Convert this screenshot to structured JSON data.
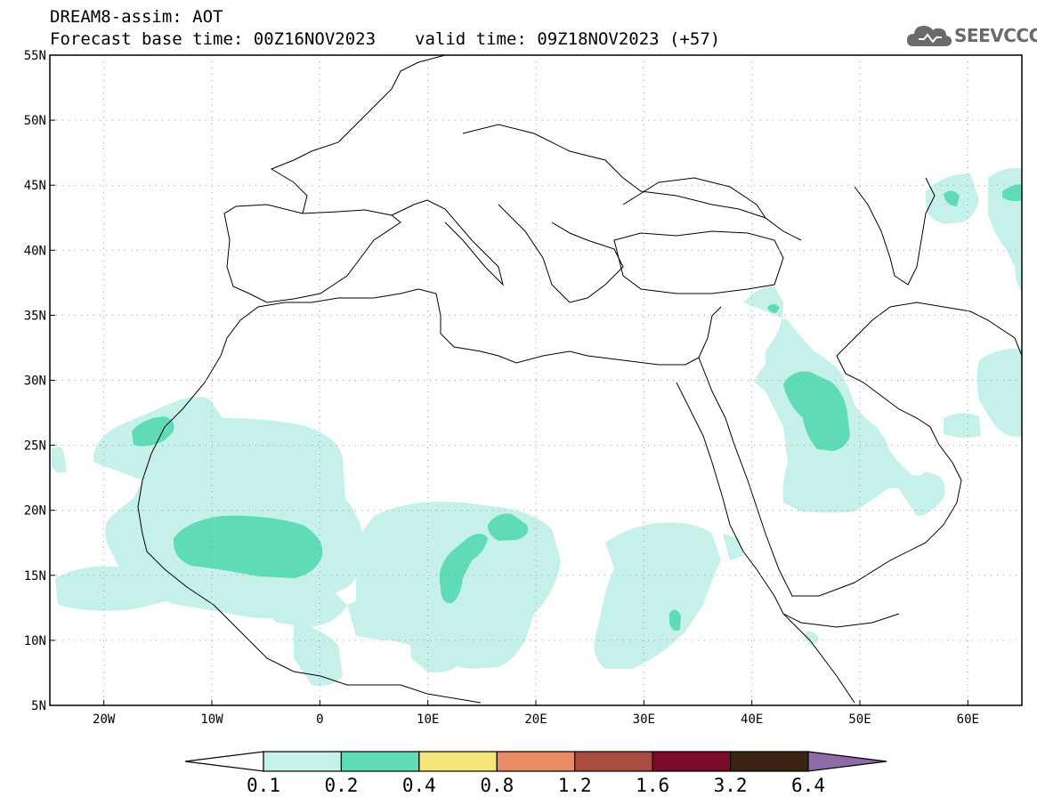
{
  "header": {
    "title": "DREAM8-assim: AOT",
    "base_time": "Forecast base time: 00Z16NOV2023",
    "valid_time": "valid time: 09Z18NOV2023 (+57)"
  },
  "logo": {
    "text": "SEEVCCC",
    "icon": "cloud-icon"
  },
  "map": {
    "lon_range": [
      -25,
      65
    ],
    "lat_range": [
      5,
      55
    ],
    "lon_ticks": [
      {
        "v": -20,
        "label": "20W"
      },
      {
        "v": -10,
        "label": "10W"
      },
      {
        "v": 0,
        "label": "0"
      },
      {
        "v": 10,
        "label": "10E"
      },
      {
        "v": 20,
        "label": "20E"
      },
      {
        "v": 30,
        "label": "30E"
      },
      {
        "v": 40,
        "label": "40E"
      },
      {
        "v": 50,
        "label": "50E"
      },
      {
        "v": 60,
        "label": "60E"
      }
    ],
    "lat_ticks": [
      {
        "v": 55,
        "label": "55N"
      },
      {
        "v": 50,
        "label": "50N"
      },
      {
        "v": 45,
        "label": "45N"
      },
      {
        "v": 40,
        "label": "40N"
      },
      {
        "v": 35,
        "label": "35N"
      },
      {
        "v": 30,
        "label": "30N"
      },
      {
        "v": 25,
        "label": "25N"
      },
      {
        "v": 20,
        "label": "20N"
      },
      {
        "v": 15,
        "label": "15N"
      },
      {
        "v": 10,
        "label": "10N"
      },
      {
        "v": 5,
        "label": "5N"
      }
    ],
    "grid": "dotted",
    "colors": {
      "aot_0_1": "#c6f1ea",
      "aot_0_2": "#5fdcb5",
      "coast": "#000000"
    }
  },
  "colorbar": {
    "labels": [
      "0.1",
      "0.2",
      "0.4",
      "0.8",
      "1.2",
      "1.6",
      "3.2",
      "6.4"
    ],
    "colors": [
      "#ffffff",
      "#c6f1ea",
      "#5fdcb5",
      "#f5e67a",
      "#e98d66",
      "#a94b3e",
      "#7d0b2a",
      "#3b2413",
      "#8e6aa6"
    ]
  }
}
